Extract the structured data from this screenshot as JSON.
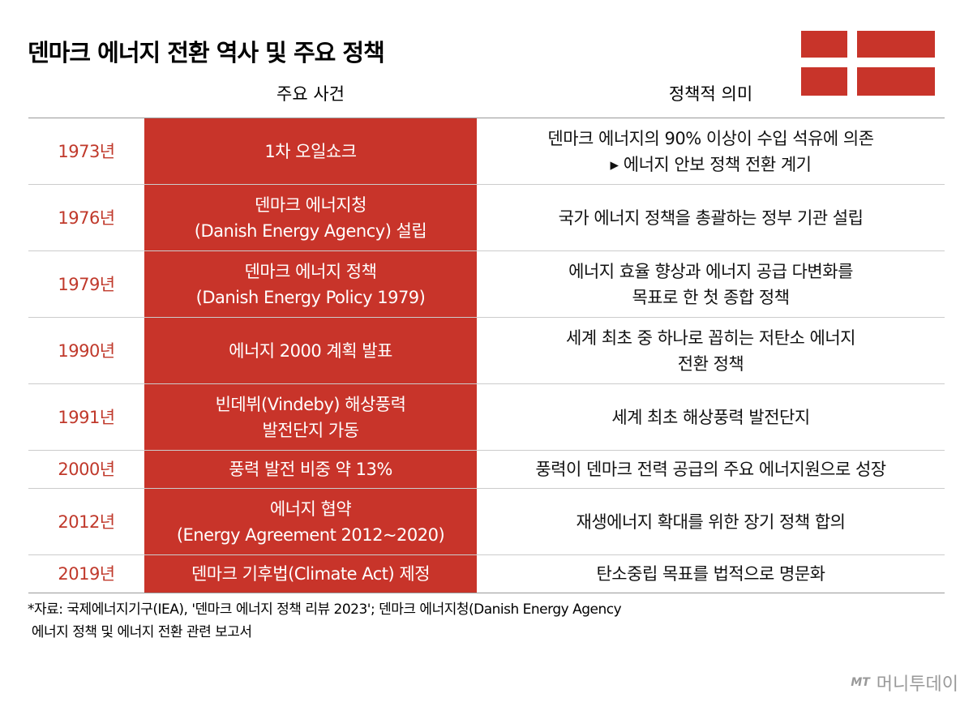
{
  "header": {
    "title": "덴마크 에너지 전환 역사 및 주요 정책"
  },
  "table": {
    "columns": [
      "주요 사건",
      "정책적 의미"
    ],
    "rows": [
      {
        "year": "1973년",
        "event": [
          "1차 오일쇼크"
        ],
        "meaning": [
          "덴마크 에너지의 90% 이상이 수입 석유에 의존",
          "▸ 에너지 안보 정책 전환 계기"
        ]
      },
      {
        "year": "1976년",
        "event": [
          "덴마크 에너지청",
          "(Danish Energy Agency) 설립"
        ],
        "meaning": [
          "국가 에너지 정책을 총괄하는 정부 기관 설립"
        ]
      },
      {
        "year": "1979년",
        "event": [
          "덴마크 에너지 정책",
          "(Danish Energy Policy 1979)"
        ],
        "meaning": [
          "에너지 효율 향상과 에너지 공급 다변화를",
          "목표로 한 첫 종합 정책"
        ]
      },
      {
        "year": "1990년",
        "event": [
          "에너지 2000 계획 발표"
        ],
        "meaning": [
          "세계 최초 중 하나로 꼽히는 저탄소 에너지",
          "전환 정책"
        ]
      },
      {
        "year": "1991년",
        "event": [
          "빈데뷔(Vindeby) 해상풍력",
          "발전단지 가동"
        ],
        "meaning": [
          "세계 최초 해상풍력 발전단지"
        ]
      },
      {
        "year": "2000년",
        "event": [
          "풍력 발전 비중 약 13%"
        ],
        "meaning": [
          "풍력이 덴마크 전력 공급의 주요 에너지원으로 성장"
        ]
      },
      {
        "year": "2012년",
        "event": [
          "에너지 협약",
          "(Energy Agreement 2012~2020)"
        ],
        "meaning": [
          "재생에너지 확대를 위한 장기 정책 합의"
        ]
      },
      {
        "year": "2019년",
        "event": [
          "덴마크 기후법(Climate Act) 제정"
        ],
        "meaning": [
          "탄소중립 목표를 법적으로 명문화"
        ]
      }
    ]
  },
  "footer": {
    "source": [
      "*자료: 국제에너지기구(IEA), '덴마크 에너지 정책 리뷰 2023'; 덴마크 에너지청(Danish Energy Agency",
      " 에너지 정책 및 에너지 전환 관련 보고서"
    ],
    "watermark": {
      "logo": "MT",
      "name": "머니투데이"
    }
  }
}
